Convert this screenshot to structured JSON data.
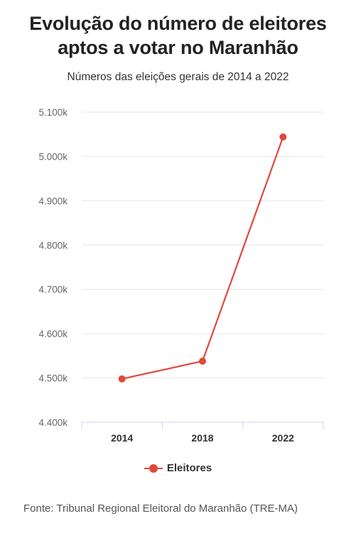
{
  "title": "Evolução do número de eleitores aptos a votar no Maranhão",
  "subtitle": "Números das eleições gerais de 2014 a 2022",
  "source": "Fonte: Tribunal Regional Eleitoral do Maranhão (TRE-MA)",
  "colors": {
    "series": "#e0483b",
    "grid": "#e6e6e6",
    "axis": "#ccd6eb"
  },
  "chart_data": {
    "type": "line",
    "title": "Evolução do número de eleitores aptos a votar no Maranhão",
    "subtitle": "Números das eleições gerais de 2014 a 2022",
    "categories": [
      "2014",
      "2018",
      "2022"
    ],
    "series": [
      {
        "name": "Eleitores",
        "values": [
          4498000,
          4538000,
          5044000
        ]
      }
    ],
    "y_ticks": [
      4400000,
      4500000,
      4600000,
      4700000,
      4800000,
      4900000,
      5000000,
      5100000
    ],
    "y_tick_labels": [
      "4.400k",
      "4.500k",
      "4.600k",
      "4.700k",
      "4.800k",
      "4.900k",
      "5.000k",
      "5.100k"
    ],
    "ylim": [
      4400000,
      5100000
    ],
    "xlabel": "",
    "ylabel": "",
    "grid": true,
    "legend": "bottom-center"
  }
}
